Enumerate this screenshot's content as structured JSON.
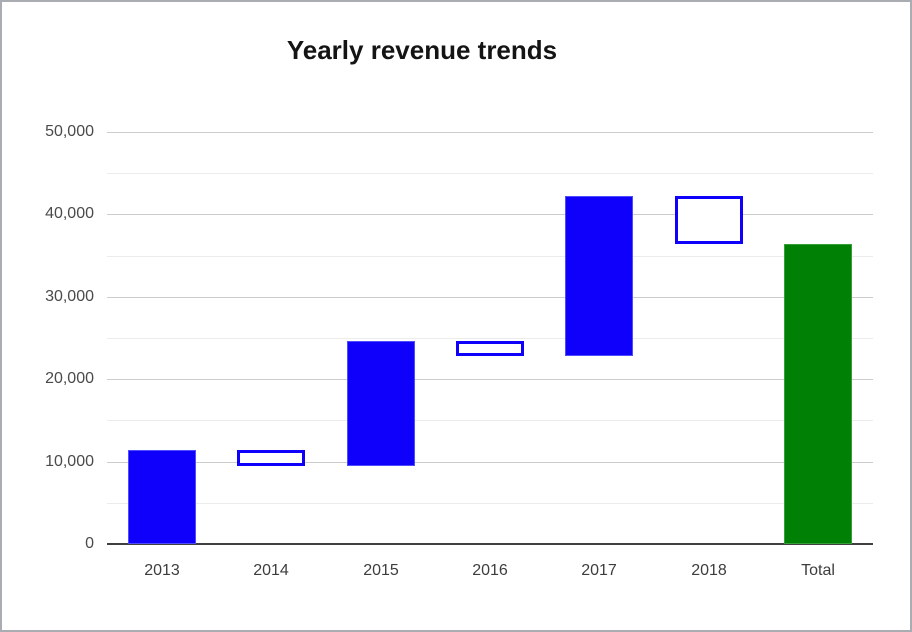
{
  "window": {
    "background_color": "#ffffff",
    "border_color": "#a9acb1"
  },
  "chart_data": {
    "type": "bar",
    "subtype": "waterfall",
    "title": "Yearly revenue trends",
    "legend": "none",
    "grid": "on",
    "categories": [
      "2013",
      "2014",
      "2015",
      "2016",
      "2017",
      "2018",
      "Total"
    ],
    "bars": [
      {
        "category": "2013",
        "start": 0,
        "end": 11400,
        "change": 11400,
        "style": "increase"
      },
      {
        "category": "2014",
        "start": 11400,
        "end": 9400,
        "change": -2000,
        "style": "decrease"
      },
      {
        "category": "2015",
        "start": 9400,
        "end": 24600,
        "change": 15200,
        "style": "increase"
      },
      {
        "category": "2016",
        "start": 24600,
        "end": 22800,
        "change": -1800,
        "style": "decrease"
      },
      {
        "category": "2017",
        "start": 22800,
        "end": 42200,
        "change": 19400,
        "style": "increase"
      },
      {
        "category": "2018",
        "start": 42200,
        "end": 36400,
        "change": -5800,
        "style": "decrease"
      },
      {
        "category": "Total",
        "start": 0,
        "end": 36400,
        "change": 36400,
        "style": "total"
      }
    ],
    "y_axis": {
      "min": 0,
      "max": 50000,
      "major_step": 10000,
      "minor_step": 5000,
      "ticks": [
        {
          "value": 0,
          "label": "0"
        },
        {
          "value": 10000,
          "label": "10,000"
        },
        {
          "value": 20000,
          "label": "20,000"
        },
        {
          "value": 30000,
          "label": "30,000"
        },
        {
          "value": 40000,
          "label": "40,000"
        },
        {
          "value": 50000,
          "label": "50,000"
        }
      ]
    },
    "colors": {
      "increase_fill": "#0f00fb",
      "decrease_fill": "#ffffff",
      "decrease_border": "#0f00fb",
      "total_fill": "#008004",
      "major_gridline": "#cccccc",
      "minor_gridline": "#ececec",
      "axis_line": "#404040",
      "axis_text": "#4a4a4a",
      "title_text": "#141414"
    }
  }
}
